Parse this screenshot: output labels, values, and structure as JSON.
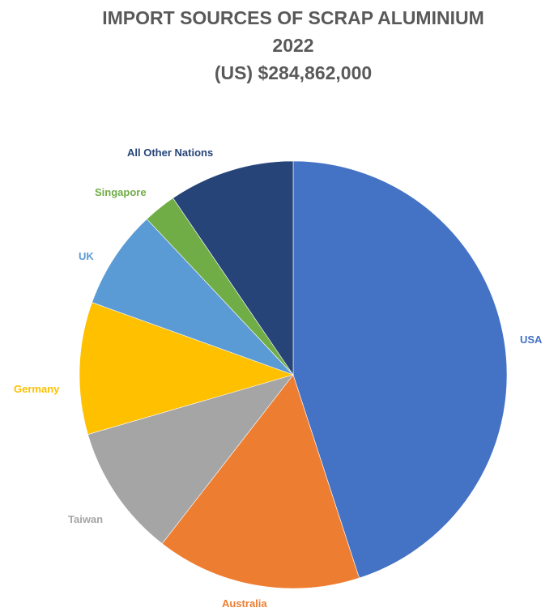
{
  "chart_data": {
    "type": "pie",
    "title_lines": [
      "IMPORT SOURCES OF SCRAP ALUMINIUM",
      "2022",
      "(US) $284,862,000"
    ],
    "start_angle_deg": 0,
    "direction": "clockwise",
    "slices": [
      {
        "label": "USA",
        "value": 45.0,
        "color": "#4472C4"
      },
      {
        "label": "Australia",
        "value": 15.5,
        "color": "#ED7D31"
      },
      {
        "label": "Taiwan",
        "value": 10.0,
        "color": "#A5A5A5"
      },
      {
        "label": "Germany",
        "value": 10.0,
        "color": "#FFC000"
      },
      {
        "label": "UK",
        "value": 7.5,
        "color": "#5B9BD5"
      },
      {
        "label": "Singapore",
        "value": 2.5,
        "color": "#70AD47"
      },
      {
        "label": "All Other Nations",
        "value": 9.5,
        "color": "#264478"
      }
    ],
    "legend": "none"
  }
}
